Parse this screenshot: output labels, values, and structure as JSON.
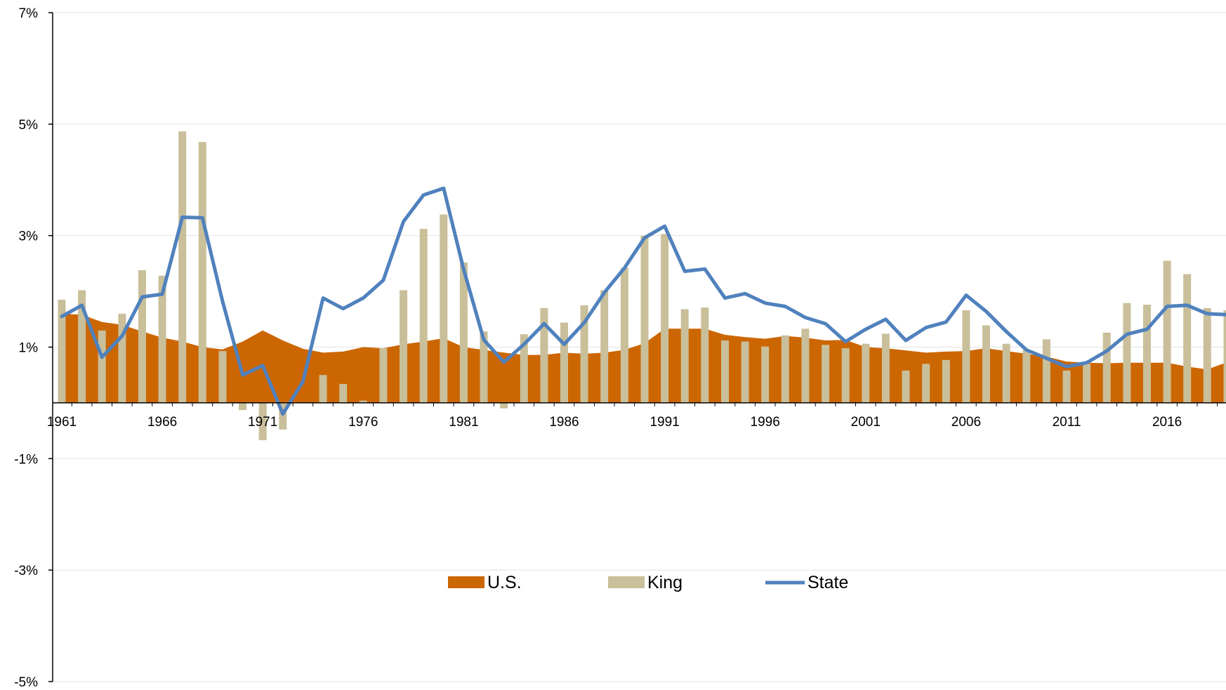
{
  "chart_data": {
    "type": "bar",
    "title": "",
    "xlabel": "",
    "ylabel": "",
    "ylim": [
      -5,
      7
    ],
    "y_ticks": [
      "7%",
      "5%",
      "3%",
      "1%",
      "-1%",
      "-3%",
      "-5%"
    ],
    "y_tick_values": [
      7,
      5,
      3,
      1,
      -1,
      -3,
      -5
    ],
    "x_ticks": [
      "1961",
      "1966",
      "1971",
      "1976",
      "1981",
      "1986",
      "1991",
      "1996",
      "2001",
      "2006",
      "2011",
      "2016"
    ],
    "x_tick_values": [
      1961,
      1966,
      1971,
      1976,
      1981,
      1986,
      1991,
      1996,
      2001,
      2006,
      2011,
      2016
    ],
    "grid": true,
    "legend_position": "bottom-center",
    "years": [
      1961,
      1962,
      1963,
      1964,
      1965,
      1966,
      1967,
      1968,
      1969,
      1970,
      1971,
      1972,
      1973,
      1974,
      1975,
      1976,
      1977,
      1978,
      1979,
      1980,
      1981,
      1982,
      1983,
      1984,
      1985,
      1986,
      1987,
      1988,
      1989,
      1990,
      1991,
      1992,
      1993,
      1994,
      1995,
      1996,
      1997,
      1998,
      1999,
      2000,
      2001,
      2002,
      2003,
      2004,
      2005,
      2006,
      2007,
      2008,
      2009,
      2010,
      2011,
      2012,
      2013,
      2014,
      2015,
      2016,
      2017,
      2018,
      2019
    ],
    "series": [
      {
        "name": "U.S.",
        "kind": "area",
        "color": "#CC6600",
        "values": [
          1.6,
          1.58,
          1.45,
          1.4,
          1.28,
          1.17,
          1.1,
          1.0,
          0.96,
          1.1,
          1.3,
          1.12,
          0.97,
          0.9,
          0.92,
          1.0,
          0.98,
          1.05,
          1.1,
          1.16,
          1.0,
          0.95,
          0.9,
          0.86,
          0.86,
          0.9,
          0.88,
          0.9,
          0.95,
          1.07,
          1.33,
          1.33,
          1.33,
          1.22,
          1.18,
          1.15,
          1.2,
          1.17,
          1.12,
          1.13,
          1.0,
          0.98,
          0.94,
          0.9,
          0.92,
          0.93,
          0.98,
          0.93,
          0.88,
          0.83,
          0.74,
          0.72,
          0.71,
          0.72,
          0.72,
          0.72,
          0.65,
          0.6,
          0.73
        ]
      },
      {
        "name": "King",
        "kind": "bar",
        "color": "#C9BF9A",
        "values": [
          1.85,
          2.02,
          1.3,
          1.6,
          2.38,
          2.28,
          4.87,
          4.68,
          0.93,
          -0.13,
          -0.67,
          -0.48,
          0.0,
          0.5,
          0.34,
          0.04,
          0.98,
          2.02,
          3.12,
          3.38,
          2.52,
          1.28,
          -0.1,
          1.23,
          1.7,
          1.44,
          1.75,
          2.02,
          2.42,
          3.0,
          3.03,
          1.68,
          1.71,
          1.12,
          1.1,
          1.01,
          1.21,
          1.33,
          1.04,
          0.98,
          1.06,
          1.24,
          0.58,
          0.7,
          0.77,
          1.66,
          1.39,
          1.06,
          0.95,
          1.14,
          0.58,
          0.7,
          1.26,
          1.79,
          1.76,
          2.55,
          2.31,
          1.7,
          1.66
        ]
      },
      {
        "name": "State",
        "kind": "line",
        "color": "#4F81BD",
        "values": [
          1.55,
          1.75,
          0.82,
          1.2,
          1.9,
          1.95,
          3.33,
          3.32,
          1.82,
          0.5,
          0.67,
          -0.2,
          0.38,
          1.88,
          1.69,
          1.88,
          2.2,
          3.25,
          3.73,
          3.85,
          2.39,
          1.13,
          0.73,
          1.05,
          1.42,
          1.05,
          1.44,
          1.98,
          2.42,
          2.96,
          3.17,
          2.36,
          2.4,
          1.88,
          1.96,
          1.79,
          1.73,
          1.53,
          1.42,
          1.1,
          1.32,
          1.5,
          1.12,
          1.35,
          1.45,
          1.93,
          1.64,
          1.28,
          0.95,
          0.8,
          0.65,
          0.72,
          0.93,
          1.23,
          1.32,
          1.73,
          1.75,
          1.6,
          1.58
        ]
      }
    ]
  }
}
